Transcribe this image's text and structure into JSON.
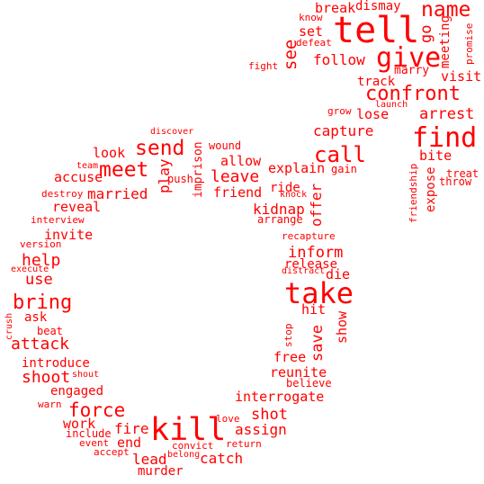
{
  "color": "#ff0000",
  "words": [
    {
      "text": "tell"
    },
    {
      "text": "give"
    },
    {
      "text": "name"
    },
    {
      "text": "break"
    },
    {
      "text": "dismay"
    },
    {
      "text": "know"
    },
    {
      "text": "set"
    },
    {
      "text": "defeat"
    },
    {
      "text": "see"
    },
    {
      "text": "go"
    },
    {
      "text": "meeting"
    },
    {
      "text": "promise"
    },
    {
      "text": "follow"
    },
    {
      "text": "fight"
    },
    {
      "text": "marry"
    },
    {
      "text": "visit"
    },
    {
      "text": "track"
    },
    {
      "text": "confront"
    },
    {
      "text": "launch"
    },
    {
      "text": "grow"
    },
    {
      "text": "lose"
    },
    {
      "text": "arrest"
    },
    {
      "text": "capture"
    },
    {
      "text": "find"
    },
    {
      "text": "discover"
    },
    {
      "text": "send"
    },
    {
      "text": "call"
    },
    {
      "text": "wound"
    },
    {
      "text": "bite"
    },
    {
      "text": "look"
    },
    {
      "text": "allow"
    },
    {
      "text": "meet"
    },
    {
      "text": "team"
    },
    {
      "text": "explain"
    },
    {
      "text": "gain"
    },
    {
      "text": "accuse"
    },
    {
      "text": "play"
    },
    {
      "text": "push"
    },
    {
      "text": "imprison"
    },
    {
      "text": "leave"
    },
    {
      "text": "friendship"
    },
    {
      "text": "treat"
    },
    {
      "text": "throw"
    },
    {
      "text": "expose"
    },
    {
      "text": "ride"
    },
    {
      "text": "knock"
    },
    {
      "text": "offer"
    },
    {
      "text": "destroy"
    },
    {
      "text": "married"
    },
    {
      "text": "friend"
    },
    {
      "text": "reveal"
    },
    {
      "text": "kidnap"
    },
    {
      "text": "interview"
    },
    {
      "text": "arrange"
    },
    {
      "text": "invite"
    },
    {
      "text": "recapture"
    },
    {
      "text": "version"
    },
    {
      "text": "inform"
    },
    {
      "text": "help"
    },
    {
      "text": "execute"
    },
    {
      "text": "release"
    },
    {
      "text": "distract"
    },
    {
      "text": "die"
    },
    {
      "text": "use"
    },
    {
      "text": "take"
    },
    {
      "text": "bring"
    },
    {
      "text": "hit"
    },
    {
      "text": "ask"
    },
    {
      "text": "crush"
    },
    {
      "text": "show"
    },
    {
      "text": "beat"
    },
    {
      "text": "stop"
    },
    {
      "text": "save"
    },
    {
      "text": "attack"
    },
    {
      "text": "introduce"
    },
    {
      "text": "free"
    },
    {
      "text": "reunite"
    },
    {
      "text": "shoot"
    },
    {
      "text": "shout"
    },
    {
      "text": "believe"
    },
    {
      "text": "engaged"
    },
    {
      "text": "interrogate"
    },
    {
      "text": "warn"
    },
    {
      "text": "force"
    },
    {
      "text": "shot"
    },
    {
      "text": "work"
    },
    {
      "text": "kill"
    },
    {
      "text": "love"
    },
    {
      "text": "include"
    },
    {
      "text": "fire"
    },
    {
      "text": "assign"
    },
    {
      "text": "event"
    },
    {
      "text": "end"
    },
    {
      "text": "convict"
    },
    {
      "text": "return"
    },
    {
      "text": "accept"
    },
    {
      "text": "belong"
    },
    {
      "text": "lead"
    },
    {
      "text": "catch"
    },
    {
      "text": "murder"
    }
  ]
}
